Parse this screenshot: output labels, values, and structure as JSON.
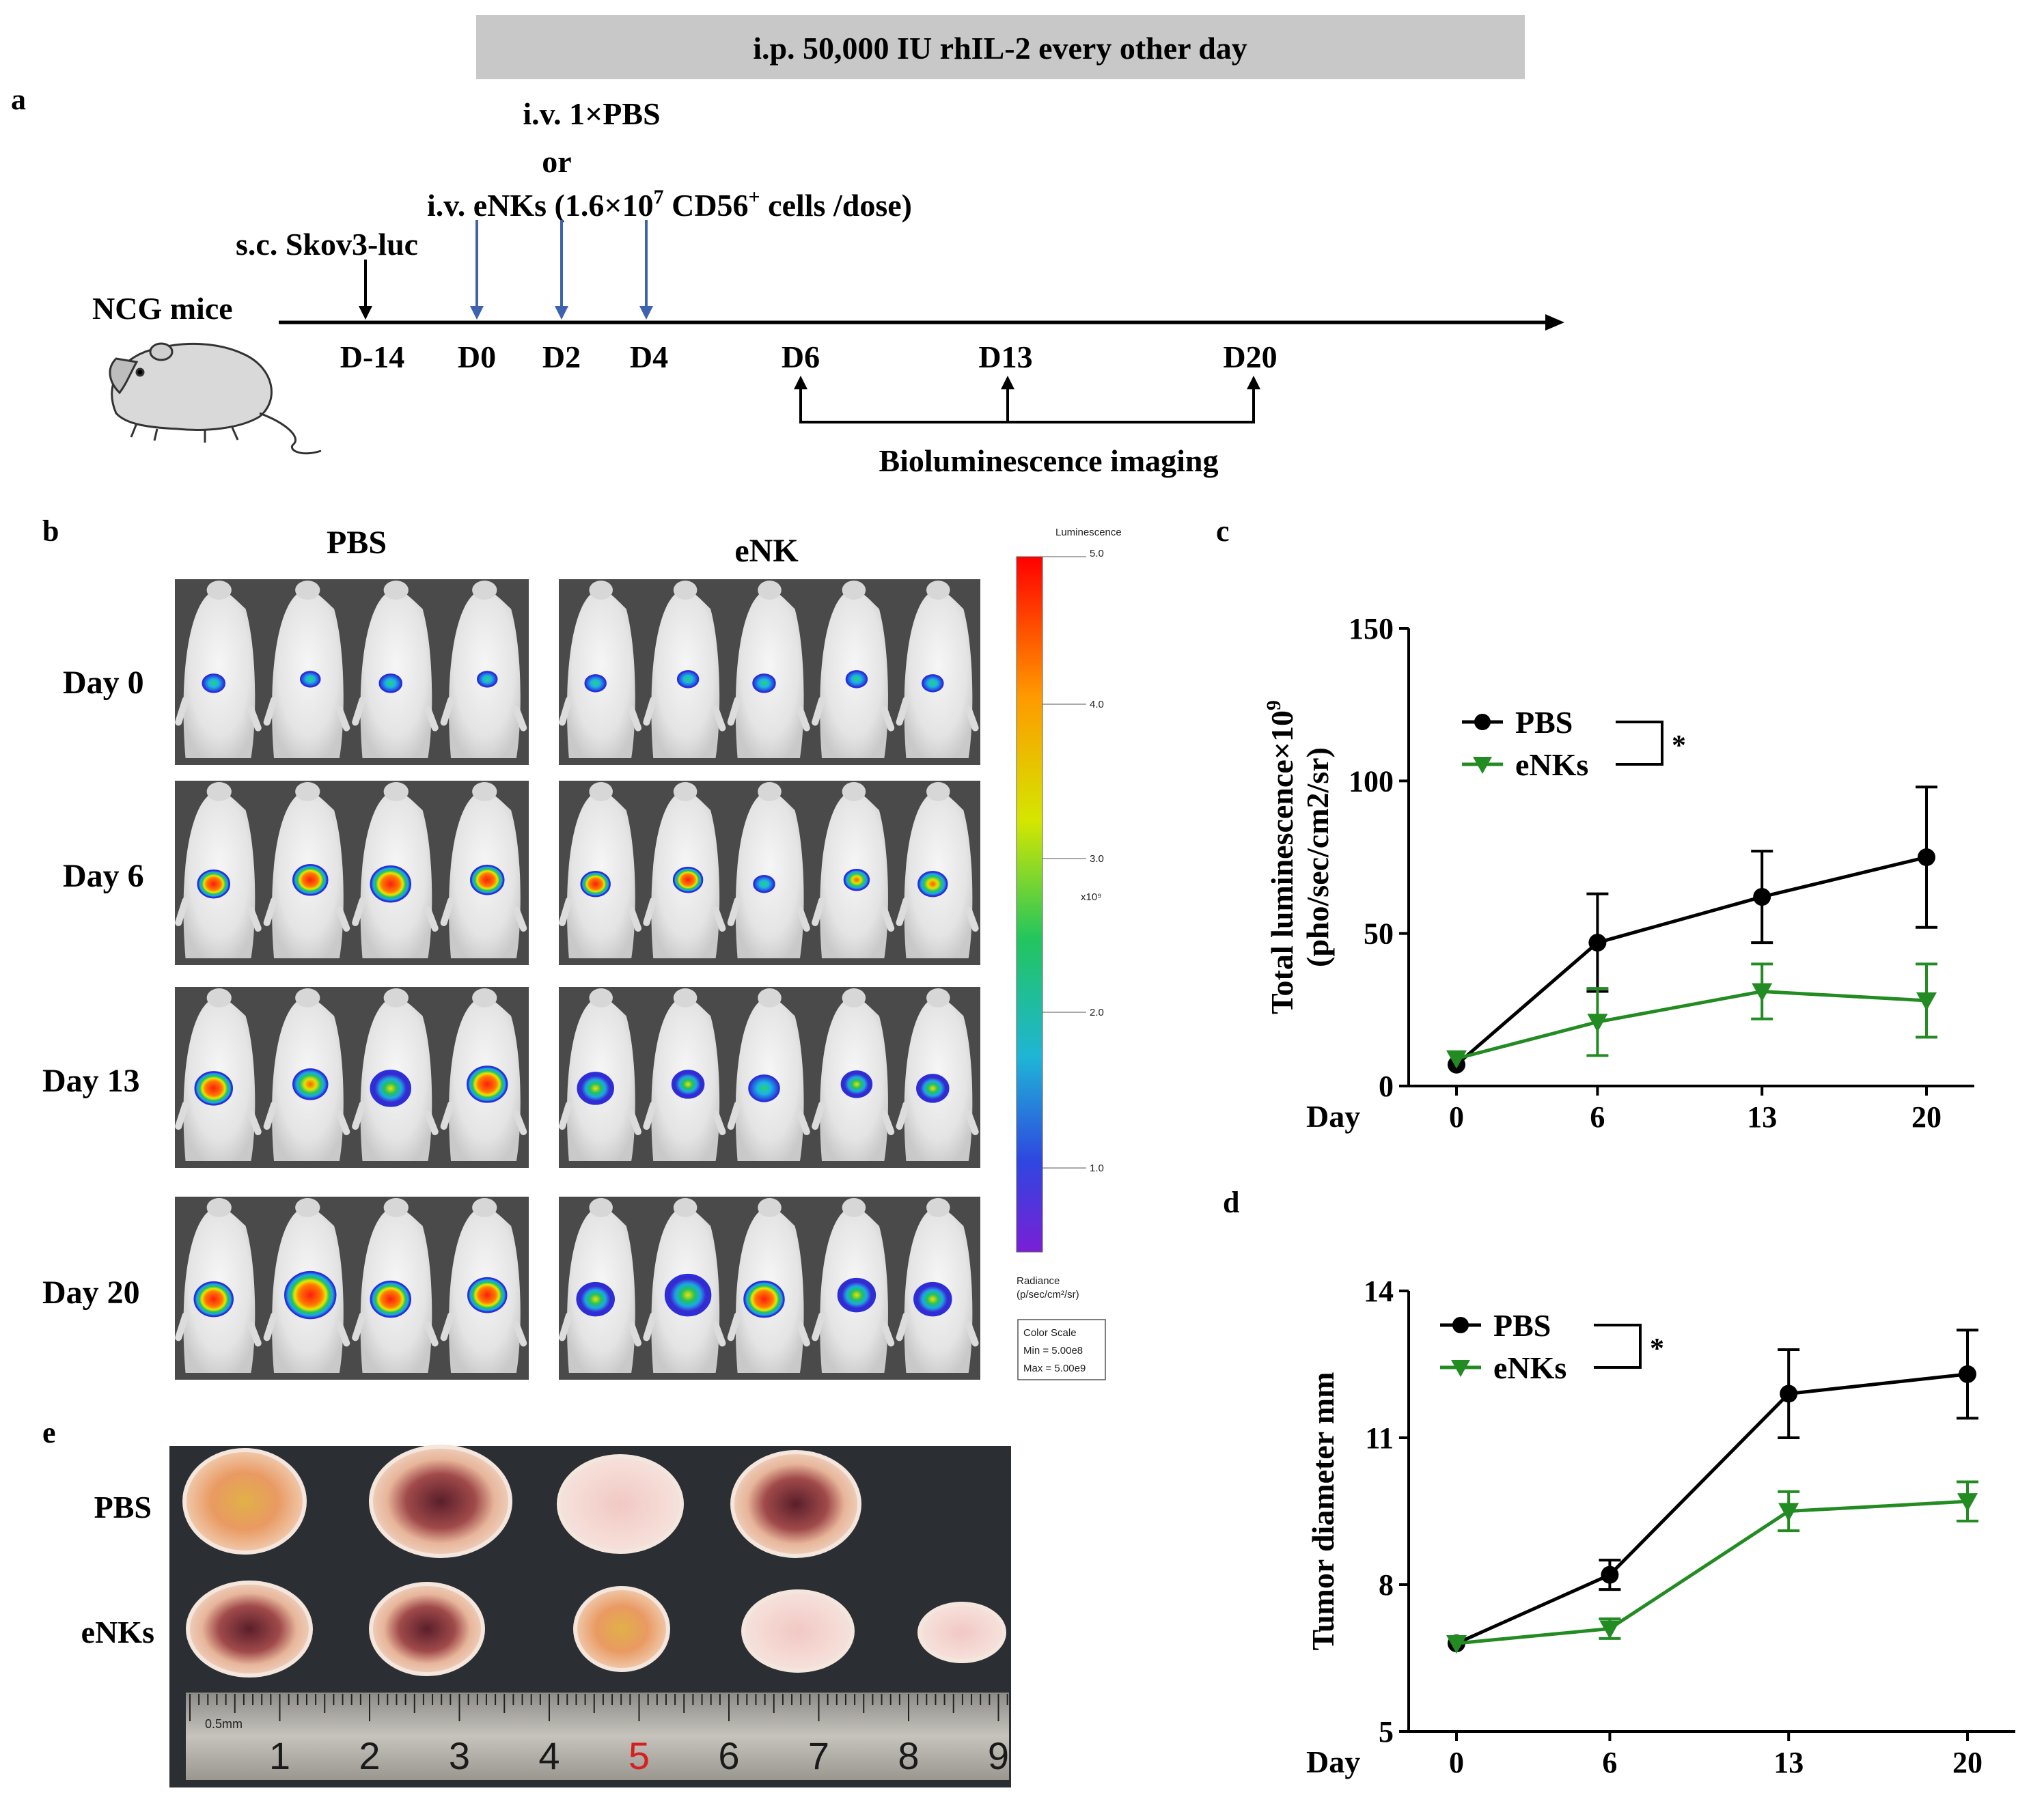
{
  "panel_labels": {
    "a": "a",
    "b": "b",
    "c": "c",
    "d": "d",
    "e": "e"
  },
  "timeline": {
    "banner": "i.p. 50,000 IU rhIL-2 every other day",
    "iv_pbs": "i.v. 1×PBS",
    "or": "or",
    "iv_enks_prefix": "i.v. eNKs (1.6×10",
    "iv_enks_exp": "7",
    "iv_enks_mid": " CD56",
    "iv_enks_sup": "+",
    "iv_enks_suffix": " cells /dose)",
    "sc_label": "s.c. Skov3-luc",
    "mice_label": "NCG mice",
    "days": [
      "D-14",
      "D0",
      "D2",
      "D4",
      "D6",
      "D13",
      "D20"
    ],
    "imaging_label": "Bioluminescence imaging"
  },
  "imaging_panel": {
    "group_pbs": "PBS",
    "group_enk": "eNK",
    "rows": [
      "Day 0",
      "Day 6",
      "Day 13",
      "Day 20"
    ],
    "pbs_mice_per_row": 4,
    "enk_mice_per_row": 5,
    "colorbar": {
      "title": "Luminescence",
      "ticks": [
        "5.0",
        "4.0",
        "3.0",
        "2.0",
        "1.0"
      ],
      "unit": "x10⁹",
      "radiance_line1": "Radiance",
      "radiance_line2": "(p/sec/cm²/sr)",
      "scale_title": "Color Scale",
      "scale_min": "Min = 5.00e8",
      "scale_max": "Max = 5.00e9"
    },
    "colors": {
      "tumor_hot": "#e8231a",
      "tumor_cold": "#2a3fd8",
      "background": "#4a4a4a",
      "mouse": "#e9e9e9"
    }
  },
  "tumor_photo": {
    "rows": [
      "PBS",
      "eNKs"
    ],
    "pbs_count": 4,
    "enks_count": 5,
    "ruler_unit": "0.5mm",
    "ruler_numbers": [
      "1",
      "2",
      "3",
      "4",
      "5",
      "6",
      "7",
      "8",
      "9"
    ]
  },
  "chart_data": [
    {
      "type": "line",
      "panel": "c",
      "x": [
        0,
        6,
        13,
        20
      ],
      "tick_labels": [
        "0",
        "6",
        "13",
        "20"
      ],
      "xlabel": "Day",
      "ylabel_line1": "Total luminescence×10",
      "ylabel_exp": "9",
      "ylabel_line2": "(pho/sec/cm2/sr)",
      "ylim": [
        0,
        150
      ],
      "yticks": [
        "0",
        "50",
        "100",
        "150"
      ],
      "significance": "*",
      "series": [
        {
          "name": "PBS",
          "color": "#000000",
          "marker": "circle",
          "values": [
            7,
            47,
            62,
            75
          ],
          "err": [
            0,
            16,
            15,
            23
          ]
        },
        {
          "name": "eNKs",
          "color": "#228b22",
          "marker": "triangle-down",
          "values": [
            9,
            21,
            31,
            28
          ],
          "err": [
            0,
            11,
            9,
            12
          ]
        }
      ]
    },
    {
      "type": "line",
      "panel": "d",
      "x": [
        0,
        6,
        13,
        20
      ],
      "tick_labels": [
        "0",
        "6",
        "13",
        "20"
      ],
      "xlabel": "Day",
      "ylabel": "Tumor diameter mm",
      "ylim": [
        5,
        14
      ],
      "yticks": [
        "5",
        "8",
        "11",
        "14"
      ],
      "significance": "*",
      "series": [
        {
          "name": "PBS",
          "color": "#000000",
          "marker": "circle",
          "values": [
            6.8,
            8.2,
            11.9,
            12.3
          ],
          "err": [
            0,
            0.3,
            0.9,
            0.9
          ]
        },
        {
          "name": "eNKs",
          "color": "#228b22",
          "marker": "triangle-down",
          "values": [
            6.8,
            7.1,
            9.5,
            9.7
          ],
          "err": [
            0,
            0.2,
            0.4,
            0.4
          ]
        }
      ]
    }
  ]
}
